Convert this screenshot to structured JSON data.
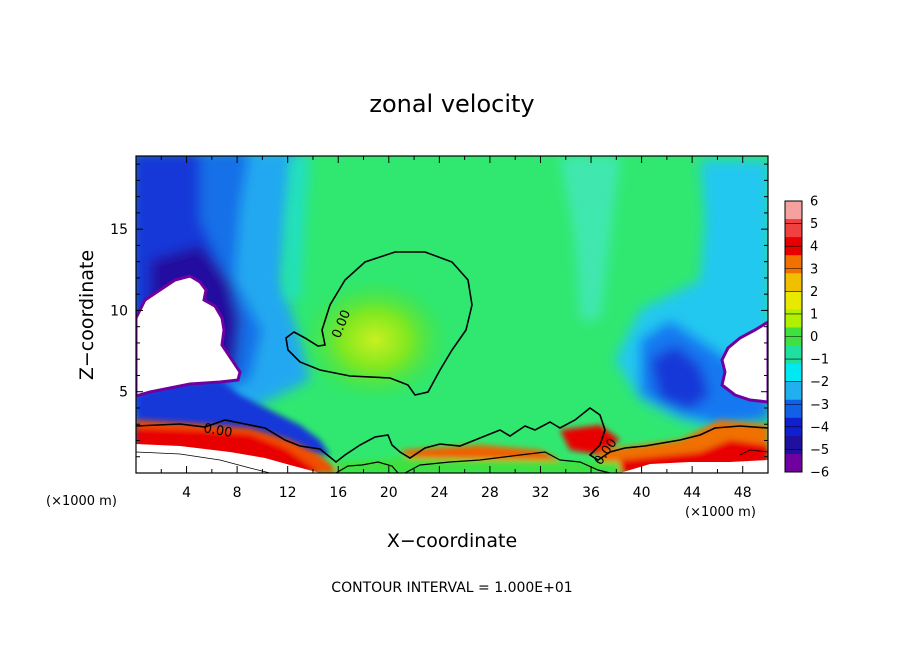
{
  "chart_data": {
    "type": "heatmap",
    "title": "zonal velocity",
    "xlabel": "X−coordinate",
    "ylabel": "Z−coordinate",
    "x_unit": "(×1000 m)",
    "xlim": [
      0,
      50
    ],
    "ylim": [
      0,
      19.5
    ],
    "x_ticks": [
      4,
      8,
      12,
      16,
      20,
      24,
      28,
      32,
      36,
      40,
      44,
      48
    ],
    "y_ticks": [
      5,
      10,
      15
    ],
    "colorbar_ticks": [
      6,
      5,
      4,
      3,
      2,
      1,
      0,
      -1,
      -2,
      -3,
      -4,
      -5,
      -6
    ],
    "colorbar_tick_labels": [
      "6",
      "5",
      "4",
      "3",
      "2",
      "1",
      "0",
      "−1",
      "−2",
      "−3",
      "−4",
      "−5",
      "−6"
    ],
    "colorbar_colors": [
      "#f7a0a0",
      "#f04040",
      "#e80000",
      "#f07000",
      "#f0c000",
      "#e8e800",
      "#b0f000",
      "#40e040",
      "#20e0a0",
      "#00e8f0",
      "#20b0f0",
      "#1060e8",
      "#1020d0",
      "#2010a0",
      "#7000a0"
    ],
    "contour_interval_text": "CONTOUR INTERVAL = 1.000E+01",
    "contour_labels": [
      "0.00",
      "0.00",
      "0.00"
    ],
    "contour_level": 0.0,
    "background_color": "#30e870",
    "masked_color": "#ffffff"
  }
}
